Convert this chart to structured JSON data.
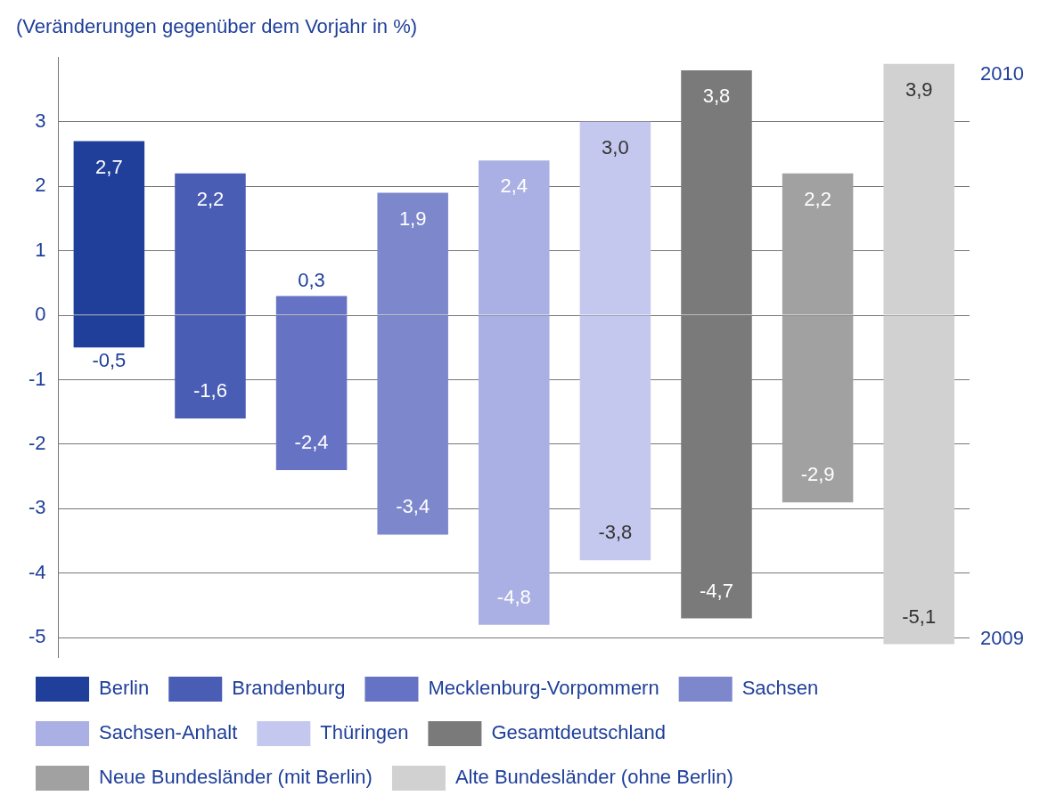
{
  "chart_data": {
    "type": "bar",
    "title": "(Veränderungen gegenüber dem Vorjahr in %)",
    "categories": [
      null,
      null,
      null,
      null,
      null,
      null,
      null,
      null,
      null
    ],
    "stacked": true,
    "annotations": [
      "2010",
      "2009"
    ],
    "series": [
      {
        "name": "Berlin",
        "color": "#1f3f9a",
        "values": [
          2.7,
          null,
          null,
          null,
          null,
          null,
          null,
          null,
          null
        ],
        "value_labels": [
          "2,7",
          null,
          null,
          null,
          null,
          null,
          null,
          null,
          null
        ]
      },
      {
        "color": "#1f3f9a",
        "values": [
          -0.5,
          null,
          null,
          null,
          null,
          null,
          null,
          null,
          null
        ],
        "value_labels": [
          "-0,5",
          null,
          null,
          null,
          null,
          null,
          null,
          null,
          null
        ]
      },
      {
        "name": "Brandenburg",
        "color": "#4a5db5",
        "values": [
          null,
          2.2,
          null,
          null,
          null,
          null,
          null,
          null,
          null
        ],
        "value_labels": [
          null,
          "2,2",
          null,
          null,
          null,
          null,
          null,
          null,
          null
        ]
      },
      {
        "color": "#4a5db5",
        "values": [
          null,
          -1.6,
          null,
          null,
          null,
          null,
          null,
          null,
          null
        ],
        "value_labels": [
          null,
          "-1,6",
          null,
          null,
          null,
          null,
          null,
          null,
          null
        ]
      },
      {
        "name": "Mecklenburg-Vorpommern",
        "color": "#6673c4",
        "values": [
          null,
          null,
          0.3,
          null,
          null,
          null,
          null,
          null,
          null
        ],
        "value_labels": [
          null,
          null,
          "0,3",
          null,
          null,
          null,
          null,
          null,
          null
        ]
      },
      {
        "color": "#6673c4",
        "values": [
          null,
          null,
          -2.4,
          null,
          null,
          null,
          null,
          null,
          null
        ],
        "value_labels": [
          null,
          null,
          "-2,4",
          null,
          null,
          null,
          null,
          null,
          null
        ]
      },
      {
        "name": "Sachsen",
        "color": "#7d87cc",
        "values": [
          null,
          null,
          null,
          1.9,
          null,
          null,
          null,
          null,
          null
        ],
        "value_labels": [
          null,
          null,
          null,
          "1,9",
          null,
          null,
          null,
          null,
          null
        ]
      },
      {
        "color": "#7d87cc",
        "values": [
          null,
          null,
          null,
          -3.4,
          null,
          null,
          null,
          null,
          null
        ],
        "value_labels": [
          null,
          null,
          null,
          "-3,4",
          null,
          null,
          null,
          null,
          null
        ]
      },
      {
        "name": "Sachsen-Anhalt",
        "color": "#aab0e3",
        "values": [
          null,
          null,
          null,
          null,
          2.4,
          null,
          null,
          null,
          null
        ],
        "value_labels": [
          null,
          null,
          null,
          null,
          "2,4",
          null,
          null,
          null,
          null
        ]
      },
      {
        "color": "#aab0e3",
        "values": [
          null,
          null,
          null,
          null,
          -4.8,
          null,
          null,
          null,
          null
        ],
        "value_labels": [
          null,
          null,
          null,
          null,
          "-4,8",
          null,
          null,
          null,
          null
        ]
      },
      {
        "name": "Thüringen",
        "color": "#c5c8ee",
        "values": [
          null,
          null,
          null,
          null,
          null,
          3.0,
          null,
          null,
          null
        ],
        "value_labels": [
          null,
          null,
          null,
          null,
          null,
          "3,0",
          null,
          null,
          null
        ]
      },
      {
        "color": "#c5c8ee",
        "values": [
          null,
          null,
          null,
          null,
          null,
          -3.8,
          null,
          null,
          null
        ],
        "value_labels": [
          null,
          null,
          null,
          null,
          null,
          "-3,8",
          null,
          null,
          null
        ]
      },
      {
        "name": "Gesamtdeutschland",
        "color": "#7a7a7a",
        "values": [
          null,
          null,
          null,
          null,
          null,
          null,
          3.8,
          null,
          null
        ],
        "value_labels": [
          null,
          null,
          null,
          null,
          null,
          null,
          "3,8",
          null,
          null
        ]
      },
      {
        "color": "#7a7a7a",
        "values": [
          null,
          null,
          null,
          null,
          null,
          null,
          -4.7,
          null,
          null
        ],
        "value_labels": [
          null,
          null,
          null,
          null,
          null,
          null,
          "-4,7",
          null,
          null
        ]
      },
      {
        "name": "Neue Bundesländer (mit Berlin)",
        "color": "#a0a1a0",
        "values": [
          null,
          null,
          null,
          null,
          null,
          null,
          null,
          2.2,
          null
        ],
        "value_labels": [
          null,
          null,
          null,
          null,
          null,
          null,
          null,
          "2,2",
          null
        ]
      },
      {
        "color": "#a0a1a0",
        "values": [
          null,
          null,
          null,
          null,
          null,
          null,
          null,
          -2.9,
          null
        ],
        "value_labels": [
          null,
          null,
          null,
          null,
          null,
          null,
          null,
          "-2,9",
          null
        ]
      },
      {
        "name": "Alte Bundesländer (ohne Berlin)",
        "color": "#d0d1d0",
        "values": [
          null,
          null,
          null,
          null,
          null,
          null,
          null,
          null,
          3.9
        ],
        "value_labels": [
          null,
          null,
          null,
          null,
          null,
          null,
          null,
          null,
          "3,9"
        ]
      },
      {
        "color": "#d0d1d0",
        "values": [
          null,
          null,
          null,
          null,
          null,
          null,
          null,
          null,
          -5.1
        ],
        "value_labels": [
          null,
          null,
          null,
          null,
          null,
          null,
          null,
          null,
          "-5,1"
        ]
      }
    ],
    "ylim": [
      -5.3,
      4
    ],
    "yticks": [
      3,
      2,
      1,
      0,
      -1,
      -2,
      -3,
      -4,
      -5
    ],
    "grid": "y",
    "tick_labels": "y",
    "legend": "bottom"
  }
}
